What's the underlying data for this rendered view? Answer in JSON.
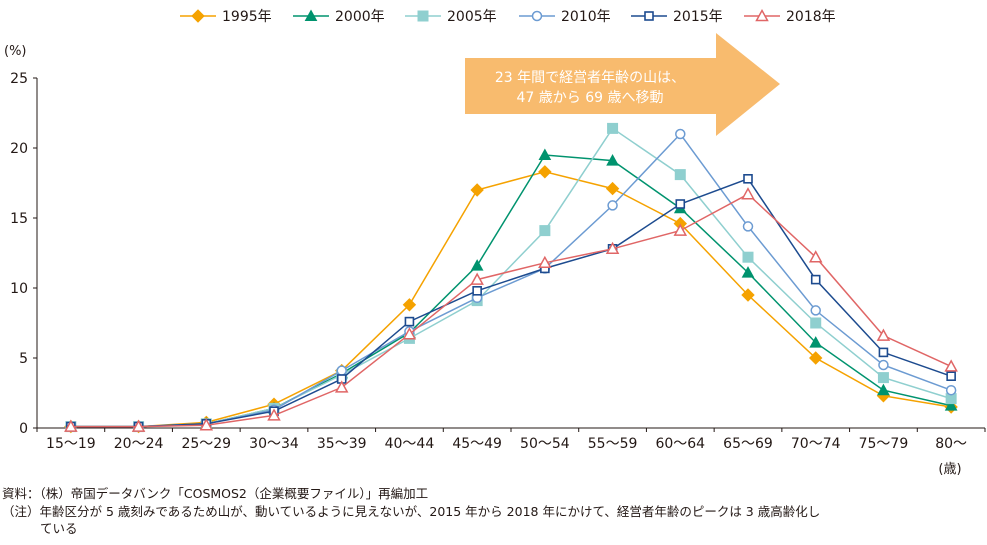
{
  "chart_data": {
    "type": "line",
    "title": "",
    "ylabel": "(%)",
    "xunit": "(歳)",
    "ylim": [
      0,
      25
    ],
    "yticks": [
      0,
      5,
      10,
      15,
      20,
      25
    ],
    "grid": false,
    "legend_position": "top",
    "categories": [
      "15〜19",
      "20〜24",
      "25〜29",
      "30〜34",
      "35〜39",
      "40〜44",
      "45〜49",
      "50〜54",
      "55〜59",
      "60〜64",
      "65〜69",
      "70〜74",
      "75〜79",
      "80〜"
    ],
    "series": [
      {
        "name": "1995年",
        "color": "#f5a200",
        "marker": "diamond",
        "values": [
          0.1,
          0.1,
          0.4,
          1.7,
          4.1,
          8.8,
          17.0,
          18.3,
          17.1,
          14.6,
          9.5,
          5.0,
          2.3,
          1.5
        ]
      },
      {
        "name": "2000年",
        "color": "#00936e",
        "marker": "triangle",
        "values": [
          0.1,
          0.1,
          0.3,
          1.4,
          3.9,
          6.8,
          11.6,
          19.5,
          19.1,
          15.7,
          11.1,
          6.1,
          2.7,
          1.6
        ]
      },
      {
        "name": "2005年",
        "color": "#8fcfcf",
        "marker": "square-filled",
        "values": [
          0.1,
          0.1,
          0.3,
          1.4,
          3.8,
          6.4,
          9.1,
          14.1,
          21.4,
          18.1,
          12.2,
          7.5,
          3.6,
          2.1
        ]
      },
      {
        "name": "2010年",
        "color": "#6c9bd2",
        "marker": "circle-open",
        "values": [
          0.1,
          0.1,
          0.3,
          1.3,
          4.1,
          6.9,
          9.3,
          11.4,
          15.9,
          21.0,
          14.4,
          8.4,
          4.5,
          2.7
        ]
      },
      {
        "name": "2015年",
        "color": "#1d4b8f",
        "marker": "square-open",
        "values": [
          0.1,
          0.1,
          0.3,
          1.2,
          3.5,
          7.6,
          9.8,
          11.4,
          12.8,
          16.0,
          17.8,
          10.6,
          5.4,
          3.7
        ]
      },
      {
        "name": "2018年",
        "color": "#e06666",
        "marker": "triangle-open",
        "values": [
          0.1,
          0.1,
          0.2,
          0.9,
          2.9,
          6.7,
          10.6,
          11.8,
          12.8,
          14.1,
          16.7,
          12.2,
          6.6,
          4.4
        ]
      }
    ],
    "annotation": {
      "line1": "23 年間で経営者年齢の山は、",
      "line2": "47 歳から 69 歳へ移動",
      "arrow_color": "#f8bb6e"
    }
  },
  "source": "資料：（株）帝国データバンク「COSMOS2（企業概要ファイル）」再編加工",
  "note_line1": "（注）年齢区分が 5 歳刻みであるため山が、動いているように見えないが、2015 年から 2018 年にかけて、経営者年齢のピークは 3 歳高齢化し",
  "note_line2": "ている"
}
